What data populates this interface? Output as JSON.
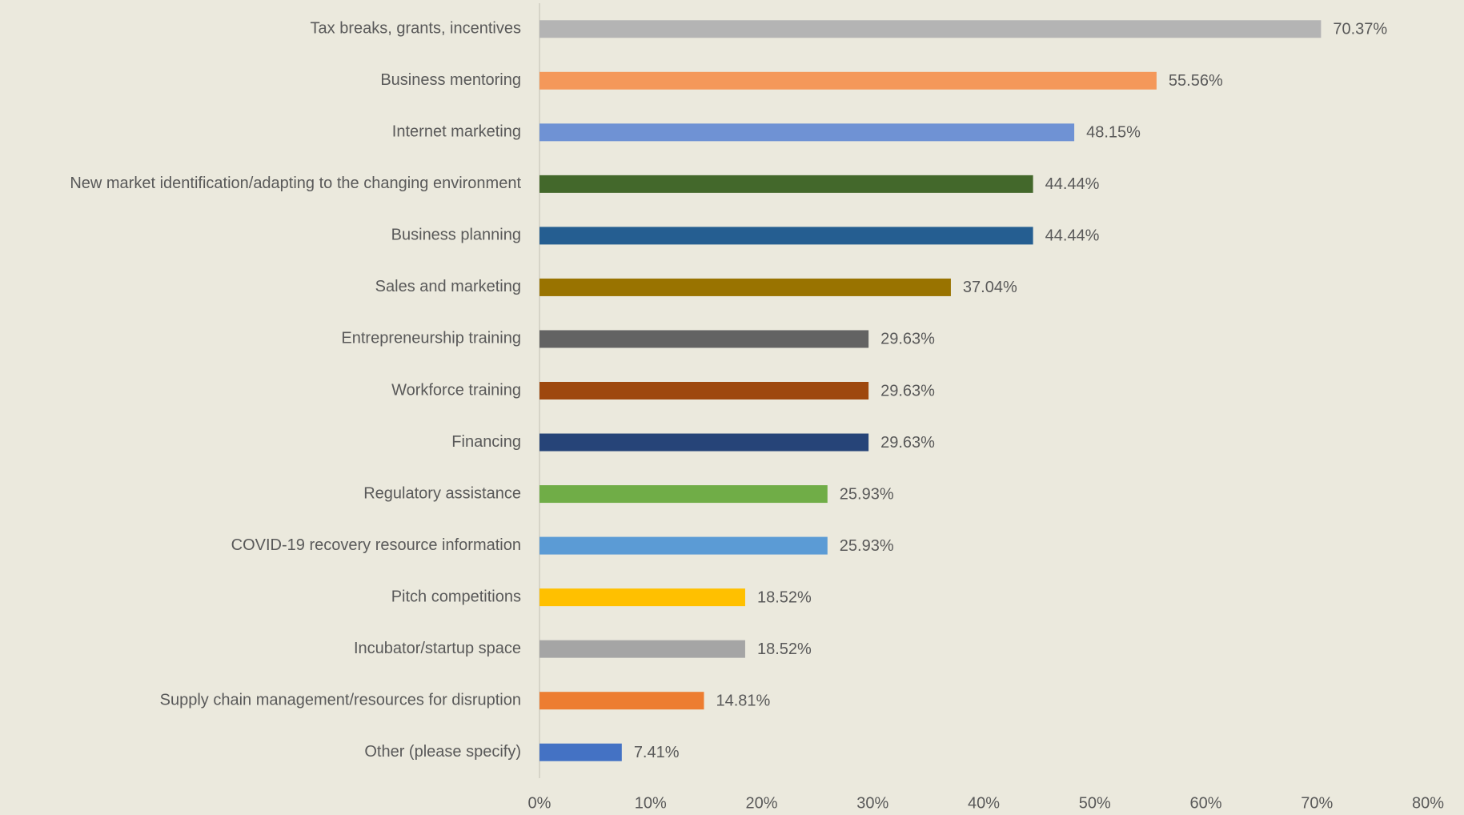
{
  "chart_data": {
    "type": "barh",
    "categories": [
      "Tax breaks, grants, incentives",
      "Business mentoring",
      "Internet marketing",
      "New market identification/adapting to the changing environment",
      "Business planning",
      "Sales and marketing",
      "Entrepreneurship training",
      "Workforce training",
      "Financing",
      "Regulatory assistance",
      "COVID-19 recovery resource information",
      "Pitch competitions",
      "Incubator/startup space",
      "Supply chain management/resources for disruption",
      "Other (please specify)"
    ],
    "values": [
      70.37,
      55.56,
      48.15,
      44.44,
      44.44,
      37.04,
      29.63,
      29.63,
      29.63,
      25.93,
      25.93,
      18.52,
      18.52,
      14.81,
      7.41
    ],
    "value_labels": [
      "70.37%",
      "55.56%",
      "48.15%",
      "44.44%",
      "44.44%",
      "37.04%",
      "29.63%",
      "29.63%",
      "29.63%",
      "25.93%",
      "25.93%",
      "18.52%",
      "18.52%",
      "14.81%",
      "7.41%"
    ],
    "colors": [
      "#b4b4b4",
      "#f4985a",
      "#6f92d4",
      "#43682b",
      "#255e91",
      "#997300",
      "#636363",
      "#9e480e",
      "#264478",
      "#70ad47",
      "#5b9bd5",
      "#ffc000",
      "#a5a5a5",
      "#ed7d31",
      "#4472c4"
    ],
    "xlim": [
      0,
      80
    ],
    "xticks": [
      {
        "value": 0,
        "label": "0%"
      },
      {
        "value": 10,
        "label": "10%"
      },
      {
        "value": 20,
        "label": "20%"
      },
      {
        "value": 30,
        "label": "30%"
      },
      {
        "value": 40,
        "label": "40%"
      },
      {
        "value": 50,
        "label": "50%"
      },
      {
        "value": 60,
        "label": "60%"
      },
      {
        "value": 70,
        "label": "70%"
      },
      {
        "value": 80,
        "label": "80%"
      }
    ],
    "grid": false
  }
}
